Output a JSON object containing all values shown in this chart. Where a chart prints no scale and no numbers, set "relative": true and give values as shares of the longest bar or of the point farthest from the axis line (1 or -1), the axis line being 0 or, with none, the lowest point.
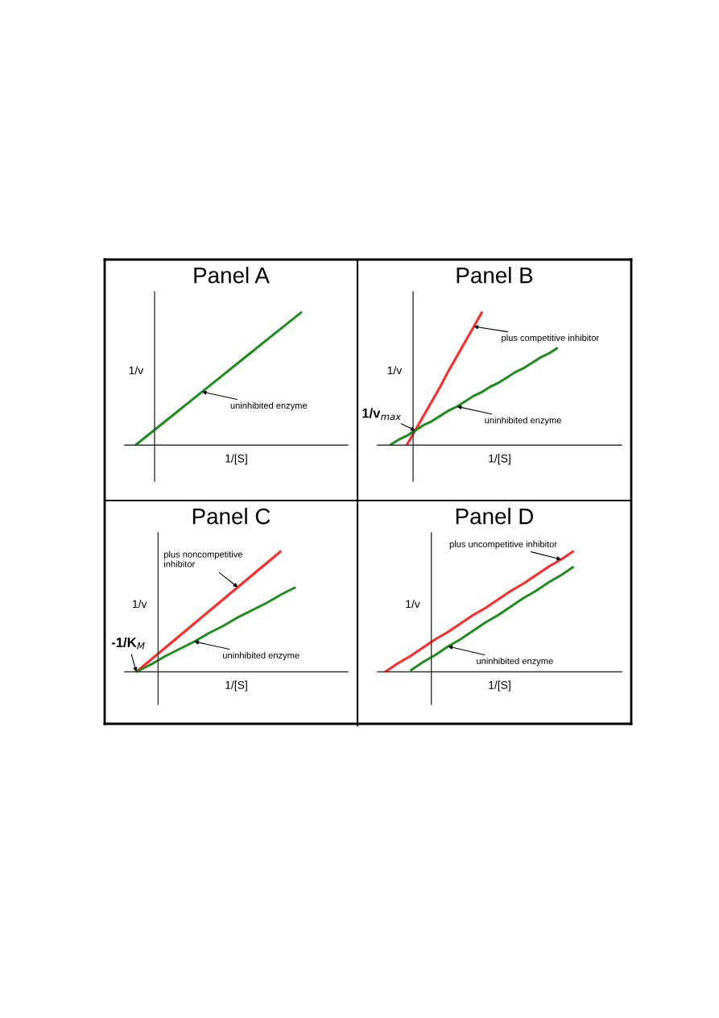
{
  "chart_data": [
    {
      "type": "line",
      "title": "Panel A",
      "xlabel": "1/[S]",
      "ylabel": "1/v",
      "relative": true,
      "tick_labels": false,
      "categories": [
        null,
        null,
        null,
        null,
        null,
        null,
        null,
        null,
        null,
        null,
        null
      ],
      "series": [
        {
          "color": "#1f8c1f",
          "values": [
            0,
            0.1,
            0.2,
            0.3,
            0.4,
            0.5,
            0.6,
            0.7,
            0.8,
            0.9,
            1
          ]
        }
      ],
      "annotations": [
        "uninhibited enzyme"
      ]
    },
    {
      "type": "line",
      "title": "Panel B",
      "xlabel": "1/[S]",
      "ylabel": "1/v",
      "relative": true,
      "tick_labels": false,
      "categories": [
        null,
        null,
        null,
        null,
        null,
        null,
        null,
        null,
        null,
        null,
        null,
        null,
        null,
        null,
        null,
        null,
        null,
        null,
        null,
        null,
        null
      ],
      "series": [
        {
          "color": "#ff2a2a",
          "values": [
            null,
            null,
            0,
            0.11,
            0.22,
            0.33,
            0.44,
            0.56,
            0.67,
            0.78,
            0.89,
            1,
            null,
            null,
            null,
            null,
            null,
            null,
            null,
            null,
            null
          ]
        },
        {
          "color": "#1f8c1f",
          "values": [
            0,
            0.04,
            0.07,
            0.11,
            0.15,
            0.18,
            0.22,
            0.26,
            0.29,
            0.33,
            0.37,
            0.4,
            0.44,
            0.47,
            0.51,
            0.55,
            0.58,
            0.62,
            0.66,
            0.69,
            0.73
          ]
        }
      ],
      "annotations": [
        "plus competitive inhibitor",
        "uninhibited enzyme",
        "1/v$_{max}$"
      ]
    },
    {
      "type": "line",
      "title": "Panel C",
      "xlabel": "1/[S]",
      "ylabel": "1/v",
      "relative": true,
      "tick_labels": false,
      "categories": [
        null,
        null,
        null,
        null,
        null,
        null,
        null,
        null,
        null,
        null,
        null,
        null
      ],
      "series": [
        {
          "color": "#ff2a2a",
          "values": [
            0,
            0.1,
            0.2,
            0.3,
            0.4,
            0.5,
            0.6,
            0.7,
            0.8,
            0.9,
            1,
            null
          ]
        },
        {
          "color": "#1f8c1f",
          "values": [
            0,
            0.06,
            0.13,
            0.19,
            0.25,
            0.32,
            0.38,
            0.45,
            0.51,
            0.57,
            0.64,
            0.7
          ]
        }
      ],
      "annotations": [
        "plus noncompetitive\ninhibitor",
        "uninhibited enzyme",
        "-1/K$_{M}$"
      ]
    },
    {
      "type": "line",
      "title": "Panel D",
      "xlabel": "1/[S]",
      "ylabel": "1/v",
      "relative": true,
      "tick_labels": false,
      "categories": [
        null,
        null,
        null,
        null,
        null,
        null,
        null,
        null,
        null,
        null,
        null,
        null,
        null,
        null,
        null,
        null
      ],
      "series": [
        {
          "color": "#ff2a2a",
          "values": [
            0,
            0.07,
            0.13,
            0.2,
            0.27,
            0.33,
            0.4,
            0.47,
            0.53,
            0.6,
            0.67,
            0.73,
            0.8,
            0.87,
            0.93,
            1
          ]
        },
        {
          "color": "#1f8c1f",
          "values": [
            null,
            null,
            0.01,
            0.08,
            0.14,
            0.21,
            0.27,
            0.34,
            0.41,
            0.47,
            0.54,
            0.61,
            0.67,
            0.74,
            0.8,
            0.87
          ]
        }
      ],
      "annotations": [
        "plus uncompetitive inhibitor",
        "uninhibited enzyme"
      ]
    }
  ]
}
